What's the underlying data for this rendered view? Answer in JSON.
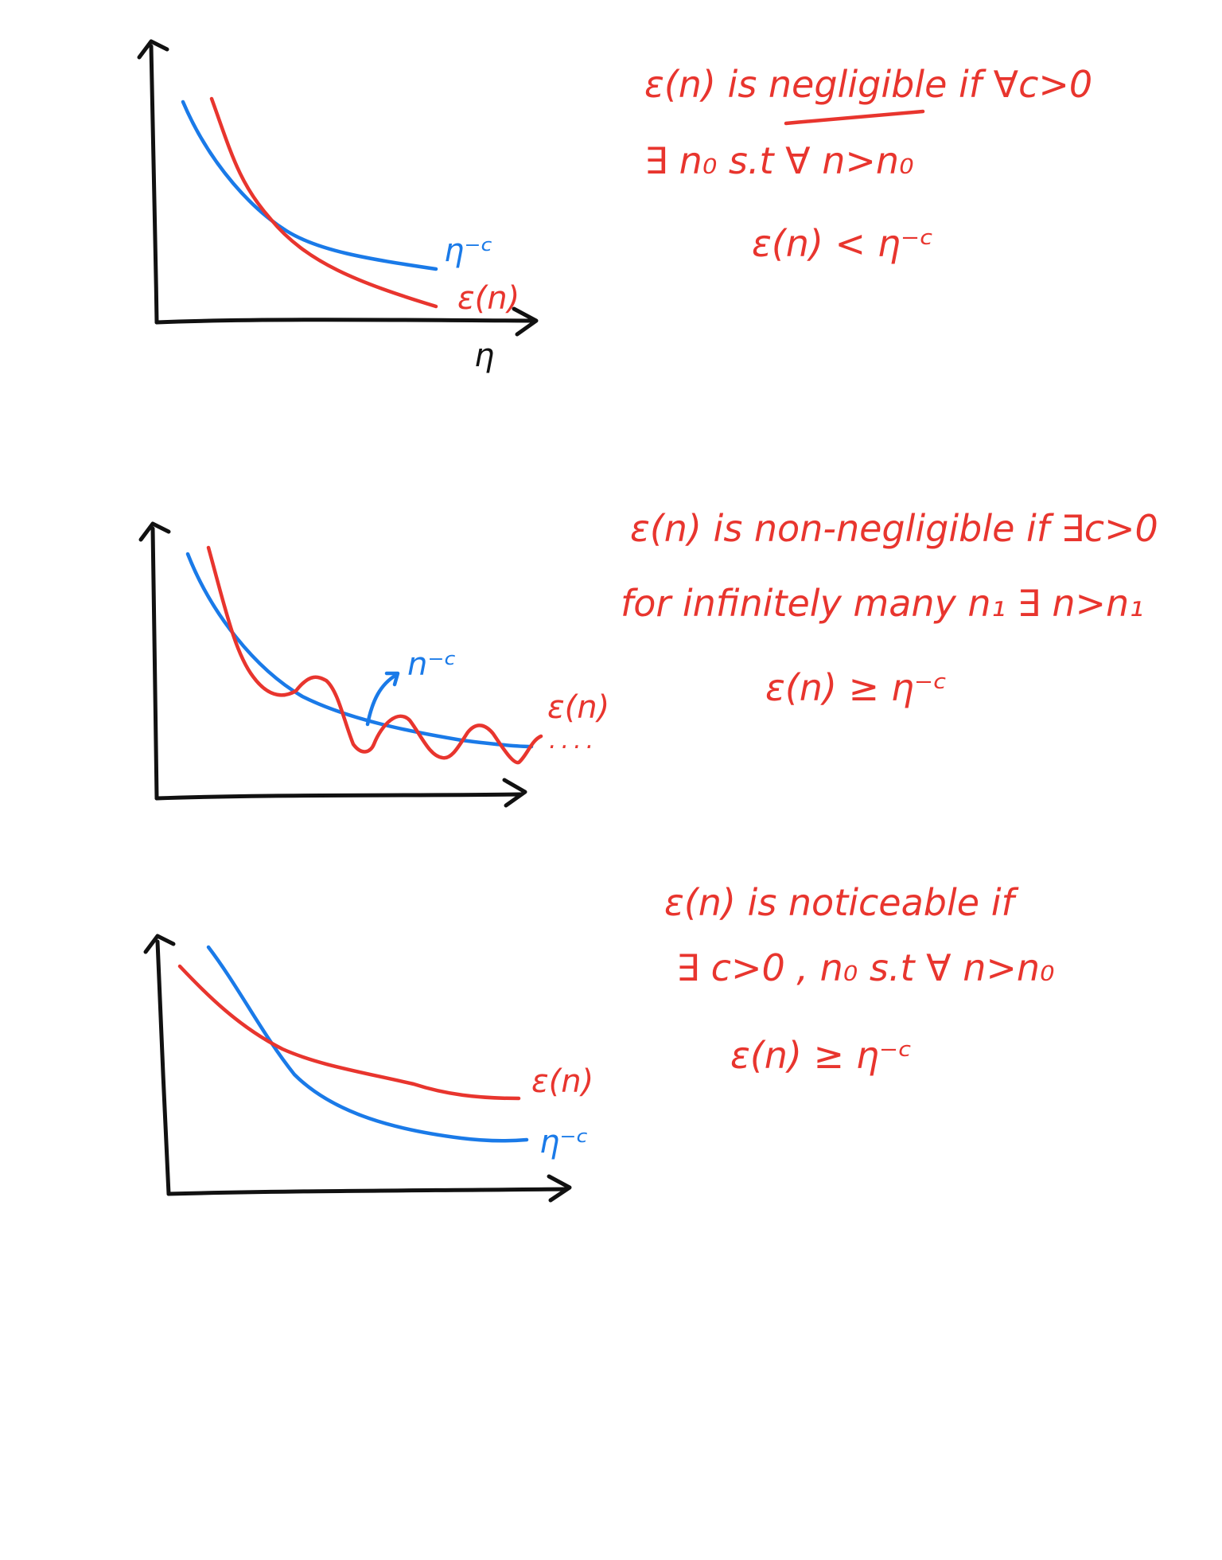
{
  "colors": {
    "red": "#e8352e",
    "blue": "#1a7ae8",
    "black": "#111111"
  },
  "panels": [
    {
      "id": "negligible",
      "curve_labels": {
        "reference": "η⁻ᶜ",
        "function": "ε(n)"
      },
      "axis_label_x": "η",
      "notes": [
        "ε(n) is negligible if ∀c>0",
        "∃ n₀ s.t ∀ n>n₀",
        "ε(n) < η⁻ᶜ"
      ]
    },
    {
      "id": "non-negligible",
      "curve_labels": {
        "reference": "n⁻ᶜ",
        "function": "ε(n)"
      },
      "trailing_dots": "....",
      "notes": [
        "ε(n) is non-negligible if ∃c>0",
        "for infinitely many n₁ ∃ n>n₁",
        "ε(n) ≥ η⁻ᶜ"
      ]
    },
    {
      "id": "noticeable",
      "curve_labels": {
        "reference": "η⁻ᶜ",
        "function": "ε(n)"
      },
      "notes": [
        "ε(n) is noticeable if",
        "∃ c>0 , n₀ s.t ∀ n>n₀",
        "ε(n) ≥ η⁻ᶜ"
      ]
    }
  ]
}
